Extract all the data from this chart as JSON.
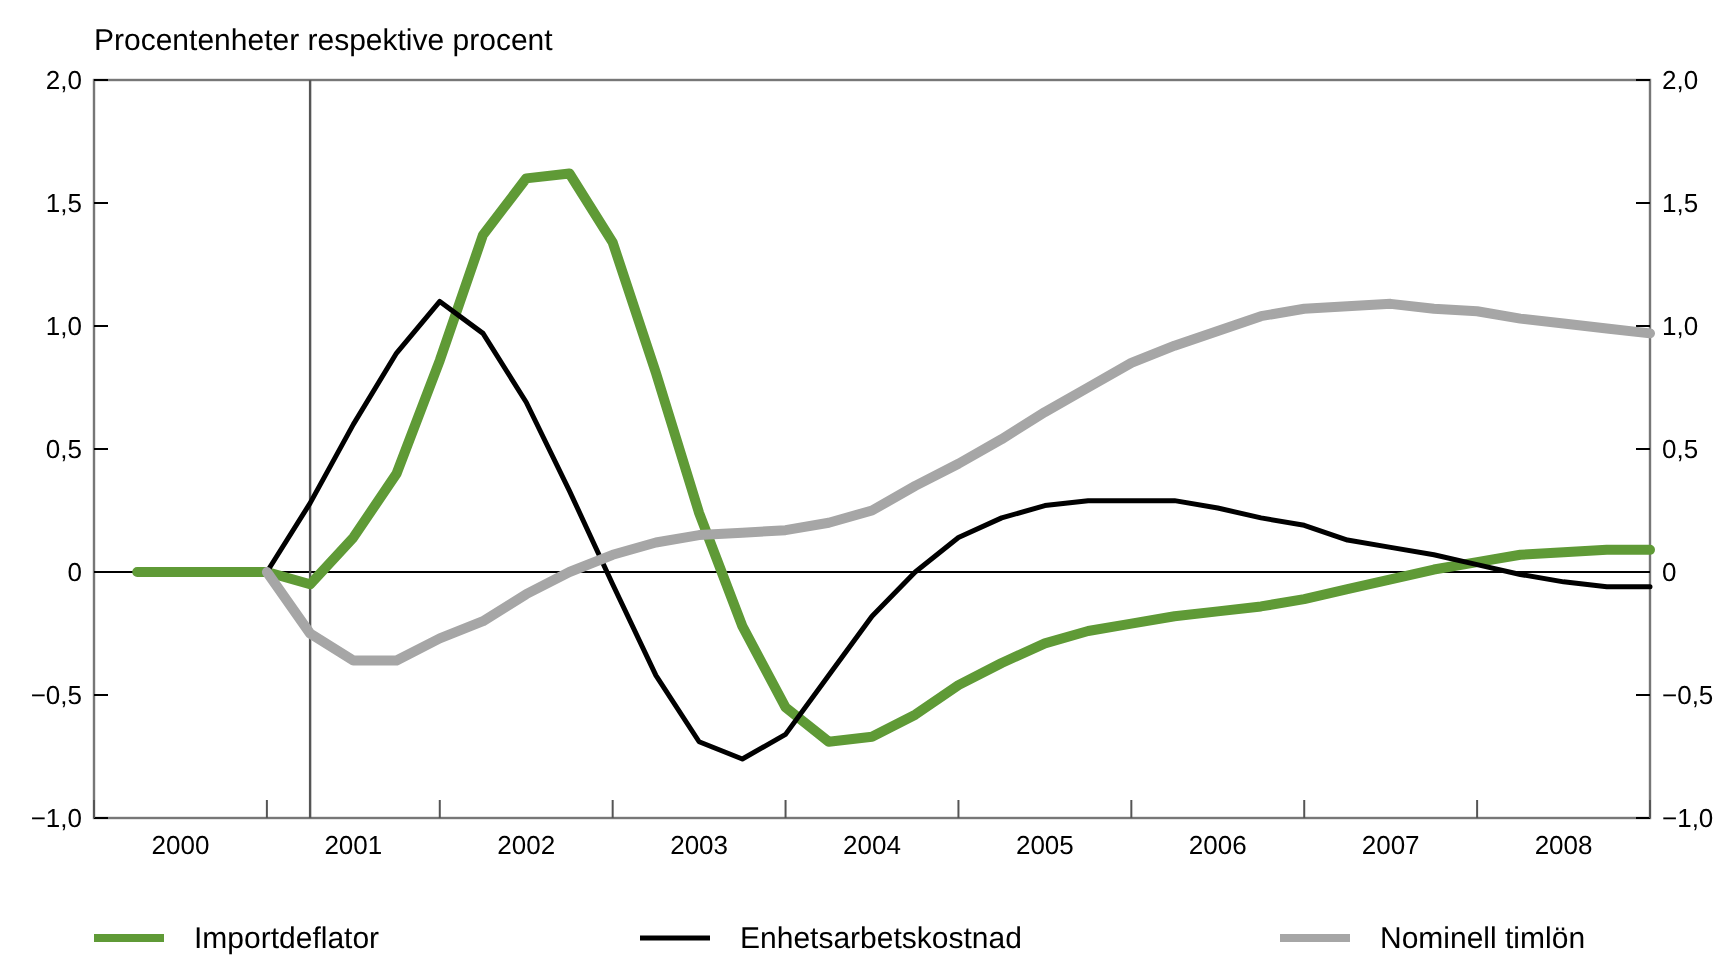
{
  "chart_data": {
    "type": "line",
    "subtitle": "Procentenheter respektive procent",
    "x": [
      2000.25,
      2000.5,
      2000.75,
      2001,
      2001.25,
      2001.5,
      2001.75,
      2002,
      2002.25,
      2002.5,
      2002.75,
      2003,
      2003.25,
      2003.5,
      2003.75,
      2004,
      2004.25,
      2004.5,
      2004.75,
      2005,
      2005.25,
      2005.5,
      2005.75,
      2006,
      2006.25,
      2006.5,
      2006.75,
      2007,
      2007.25,
      2007.5,
      2007.75,
      2008,
      2008.25,
      2008.5,
      2008.75,
      2009
    ],
    "series": [
      {
        "name": "Importdeflator",
        "color": "#5f9a36",
        "values": [
          0,
          0,
          0,
          0,
          -0.05,
          0.14,
          0.4,
          0.86,
          1.37,
          1.6,
          1.62,
          1.34,
          0.81,
          0.24,
          -0.22,
          -0.55,
          -0.69,
          -0.67,
          -0.58,
          -0.46,
          -0.37,
          -0.29,
          -0.24,
          -0.21,
          -0.18,
          -0.16,
          -0.14,
          -0.11,
          -0.07,
          -0.03,
          0.01,
          0.04,
          0.07,
          0.08,
          0.09,
          0.09
        ]
      },
      {
        "name": "Enhetsarbetskostnad",
        "color": "#000000",
        "values": [
          null,
          null,
          null,
          0,
          0.28,
          0.6,
          0.89,
          1.1,
          0.97,
          0.69,
          0.33,
          -0.05,
          -0.42,
          -0.69,
          -0.76,
          -0.66,
          -0.42,
          -0.18,
          0,
          0.14,
          0.22,
          0.27,
          0.29,
          0.29,
          0.29,
          0.26,
          0.22,
          0.19,
          0.13,
          0.1,
          0.07,
          0.03,
          -0.01,
          -0.04,
          -0.06,
          -0.06
        ]
      },
      {
        "name": "Nominell timlön",
        "color": "#a6a6a6",
        "values": [
          null,
          null,
          null,
          0,
          -0.25,
          -0.36,
          -0.36,
          -0.27,
          -0.2,
          -0.09,
          0,
          0.07,
          0.12,
          0.15,
          0.16,
          0.17,
          0.2,
          0.25,
          0.35,
          0.44,
          0.54,
          0.65,
          0.75,
          0.85,
          0.92,
          0.98,
          1.04,
          1.07,
          1.08,
          1.09,
          1.07,
          1.06,
          1.03,
          1.01,
          0.99,
          0.97
        ]
      }
    ],
    "xlim": [
      2000,
      2009
    ],
    "xticks": [
      {
        "value": 2000,
        "label": null
      },
      {
        "value": 2000.5,
        "label": "2000"
      },
      {
        "value": 2001,
        "label": null
      },
      {
        "value": 2001.5,
        "label": "2001"
      },
      {
        "value": 2002,
        "label": null
      },
      {
        "value": 2002.5,
        "label": "2002"
      },
      {
        "value": 2003,
        "label": null
      },
      {
        "value": 2003.5,
        "label": "2003"
      },
      {
        "value": 2004,
        "label": null
      },
      {
        "value": 2004.5,
        "label": "2004"
      },
      {
        "value": 2005,
        "label": null
      },
      {
        "value": 2005.5,
        "label": "2005"
      },
      {
        "value": 2006,
        "label": null
      },
      {
        "value": 2006.5,
        "label": "2006"
      },
      {
        "value": 2007,
        "label": null
      },
      {
        "value": 2007.5,
        "label": "2007"
      },
      {
        "value": 2008,
        "label": null
      },
      {
        "value": 2008.5,
        "label": "2008"
      },
      {
        "value": 2009,
        "label": null
      }
    ],
    "ylim": [
      -1,
      2
    ],
    "yticks": [
      {
        "value": -1,
        "label": "−1,0"
      },
      {
        "value": -0.5,
        "label": "−0,5"
      },
      {
        "value": 0,
        "label": "0"
      },
      {
        "value": 0.5,
        "label": "0,5"
      },
      {
        "value": 1,
        "label": "1,0"
      },
      {
        "value": 1.5,
        "label": "1,5"
      },
      {
        "value": 2,
        "label": "2,0"
      }
    ],
    "y2lim": [
      -1,
      2
    ],
    "y2ticks": [
      {
        "value": -1,
        "label": "−1,0"
      },
      {
        "value": -0.5,
        "label": "−0,5"
      },
      {
        "value": 0,
        "label": "0"
      },
      {
        "value": 0.5,
        "label": "0,5"
      },
      {
        "value": 1,
        "label": "1,0"
      },
      {
        "value": 1.5,
        "label": "1,5"
      },
      {
        "value": 2,
        "label": "2,0"
      }
    ],
    "ref_lines": [
      {
        "axis": "y",
        "value": 0,
        "color": "#000000"
      },
      {
        "axis": "x",
        "value": 2001.25,
        "color": "#555555"
      }
    ],
    "grid": false,
    "legend": "bottom",
    "marker": "none",
    "line_style": "solid"
  }
}
